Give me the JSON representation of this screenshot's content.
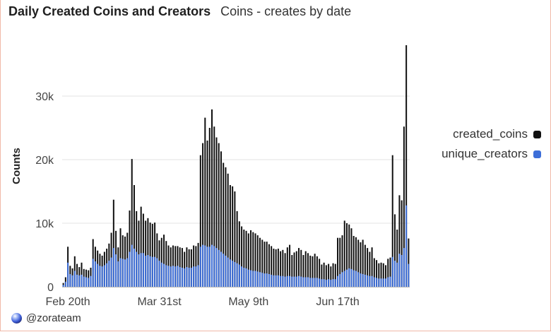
{
  "header": {
    "title": "Daily Created Coins and Creators",
    "subtitle": "Coins - creates by date"
  },
  "footer": {
    "handle": "@zorateam"
  },
  "chart_data": {
    "type": "bar",
    "ylabel": "Counts",
    "ylim": [
      0,
      40000
    ],
    "yticks": [
      0,
      10000,
      20000,
      30000
    ],
    "ytick_labels": [
      "0",
      "10k",
      "20k",
      "30k"
    ],
    "xtick_labels": [
      "Feb 20th",
      "Mar 31st",
      "May 9th",
      "Jun 17th"
    ],
    "xtick_index": [
      2,
      42,
      81,
      120
    ],
    "grid": true,
    "legend_position": "right",
    "series": [
      {
        "name": "created_coins",
        "color": "#111111",
        "values": [
          600,
          1500,
          6300,
          3300,
          2900,
          4800,
          3600,
          3100,
          3800,
          2800,
          2700,
          2600,
          3000,
          7500,
          6300,
          5700,
          5200,
          4900,
          5500,
          6000,
          6800,
          8500,
          13700,
          8800,
          6200,
          9200,
          8100,
          7900,
          8500,
          12000,
          20100,
          16000,
          11900,
          10400,
          12600,
          11500,
          10400,
          10800,
          10100,
          9900,
          10100,
          8400,
          7300,
          7700,
          8200,
          7200,
          6500,
          6200,
          6500,
          6400,
          6400,
          6200,
          6100,
          5500,
          6200,
          5900,
          5900,
          6500,
          6400,
          6900,
          20700,
          22600,
          26600,
          23000,
          25000,
          27900,
          25200,
          23500,
          22600,
          21300,
          19500,
          18800,
          17800,
          16000,
          15800,
          15000,
          11900,
          10300,
          9500,
          9000,
          8800,
          8400,
          8900,
          8600,
          8400,
          8100,
          7700,
          7400,
          7100,
          7100,
          6700,
          6400,
          6000,
          5900,
          6000,
          5600,
          5800,
          5300,
          6200,
          6600,
          5000,
          5400,
          5600,
          6100,
          5800,
          5000,
          5600,
          5300,
          4900,
          4800,
          5200,
          4800,
          4400,
          3500,
          3800,
          3400,
          3600,
          3200,
          3700,
          3600,
          7700,
          7700,
          8100,
          10400,
          10000,
          9800,
          9200,
          8000,
          7800,
          7400,
          7000,
          7400,
          6600,
          6100,
          5500,
          6200,
          4500,
          4200,
          3700,
          3800,
          3700,
          3400,
          4400,
          4600,
          20700,
          11400,
          9000,
          14400,
          13600,
          25200,
          38000,
          7600
        ],
        "note": "daily counts read from chart at ~1-day resolution"
      },
      {
        "name": "unique_creators",
        "color": "#3d6ed8",
        "values": [
          300,
          800,
          3800,
          2000,
          1800,
          2500,
          1900,
          1800,
          1900,
          1600,
          1500,
          1400,
          1700,
          4400,
          4000,
          3600,
          3300,
          3200,
          3400,
          3700,
          4100,
          4600,
          6100,
          5100,
          4000,
          4500,
          4400,
          4300,
          4500,
          5500,
          6600,
          6000,
          5500,
          5100,
          5300,
          5300,
          4900,
          5000,
          4800,
          4700,
          4700,
          4500,
          4100,
          3800,
          3600,
          3400,
          3300,
          3200,
          3300,
          3200,
          3300,
          3100,
          3000,
          2900,
          3100,
          3000,
          3000,
          3200,
          3200,
          3400,
          6300,
          6600,
          6500,
          6300,
          6300,
          6600,
          6400,
          6100,
          5800,
          5500,
          5200,
          4900,
          4600,
          4300,
          4100,
          3900,
          3700,
          3500,
          3200,
          3000,
          2900,
          2700,
          2600,
          2500,
          2500,
          2400,
          2300,
          2200,
          2100,
          2100,
          2000,
          1900,
          1800,
          1800,
          1800,
          1700,
          1700,
          1600,
          1700,
          1700,
          1600,
          1600,
          1600,
          1700,
          1600,
          1500,
          1500,
          1500,
          1400,
          1400,
          1400,
          1400,
          1300,
          1200,
          1200,
          1100,
          1200,
          1100,
          1200,
          1200,
          1700,
          2000,
          2300,
          2500,
          2700,
          2900,
          2800,
          2600,
          2500,
          2300,
          2100,
          2000,
          1900,
          1800,
          1700,
          1700,
          1500,
          1400,
          1300,
          1300,
          1300,
          1300,
          1500,
          1600,
          4700,
          4100,
          3800,
          5200,
          5000,
          6100,
          12800,
          3600
        ]
      }
    ]
  }
}
